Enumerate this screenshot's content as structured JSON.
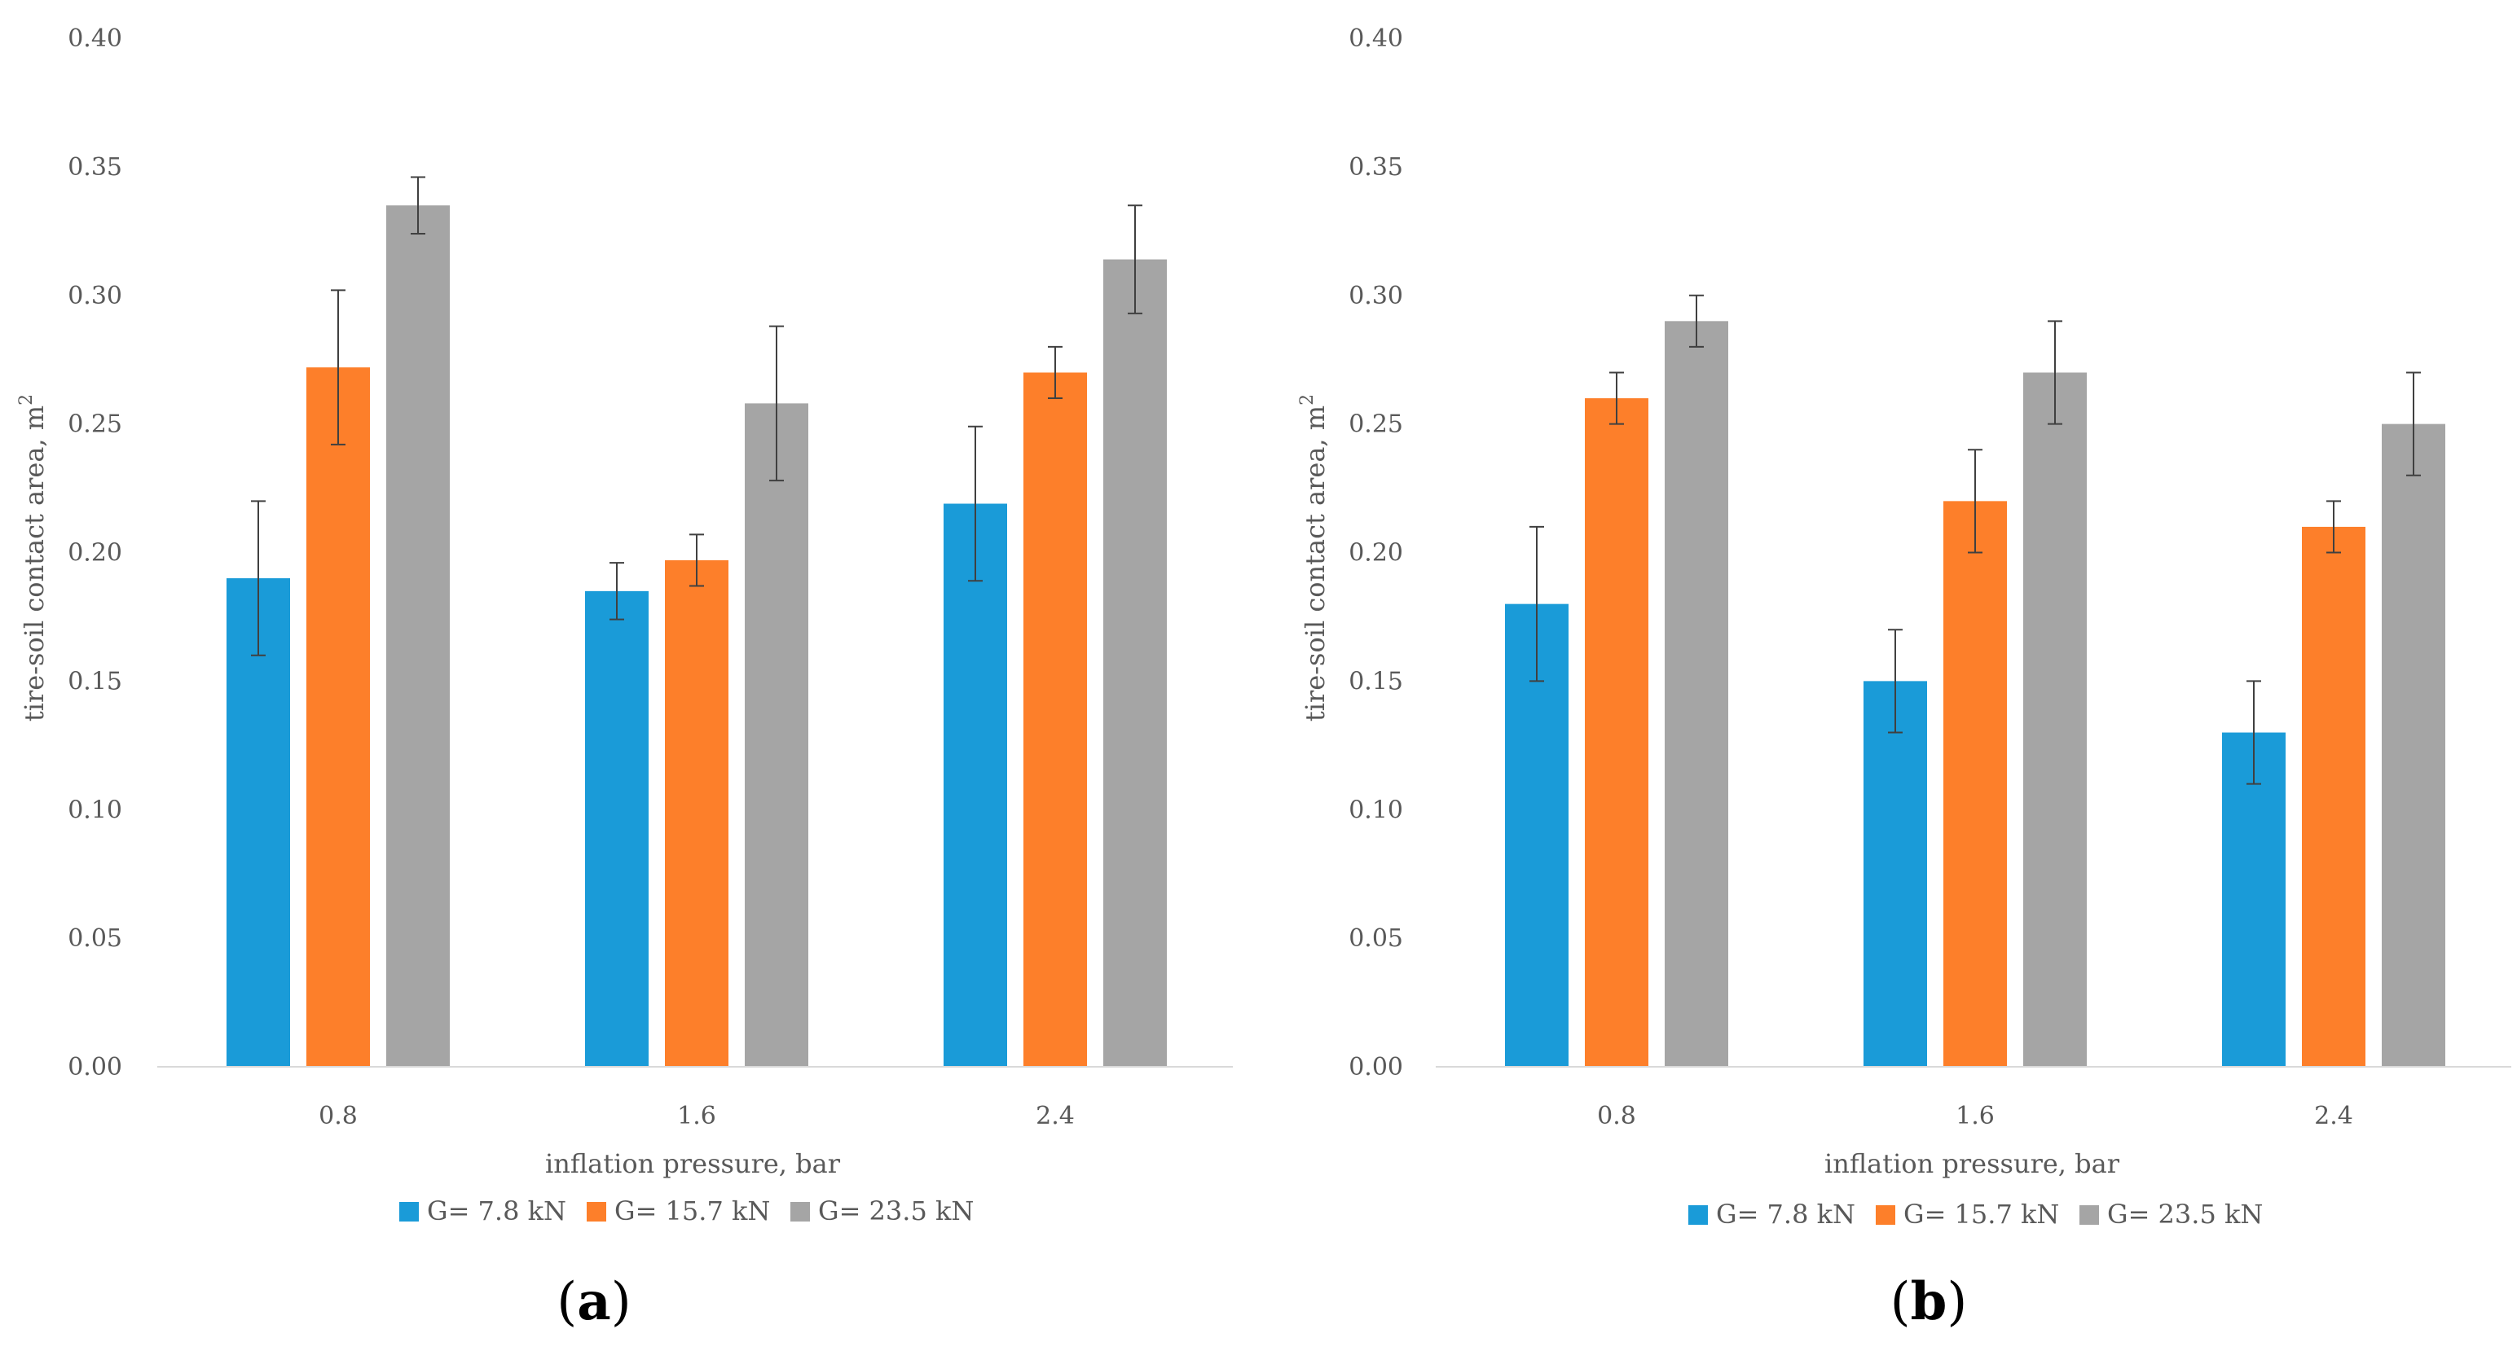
{
  "colors": {
    "series": [
      "#1a9bd8",
      "#fd7f2a",
      "#a5a5a5"
    ],
    "axis": "#d9d9d9",
    "text": "#595959",
    "error_bar": "#404040"
  },
  "chart_data": [
    {
      "type": "bar",
      "panel_label": "a",
      "categories": [
        "0.8",
        "1.6",
        "2.4"
      ],
      "series": [
        {
          "name": "G= 7.8 kN",
          "values": [
            0.19,
            0.185,
            0.219
          ],
          "error": [
            0.03,
            0.011,
            0.03
          ]
        },
        {
          "name": "G= 15.7 kN",
          "values": [
            0.272,
            0.197,
            0.27
          ],
          "error": [
            0.03,
            0.01,
            0.01
          ]
        },
        {
          "name": "G= 23.5 kN",
          "values": [
            0.335,
            0.258,
            0.314
          ],
          "error": [
            0.011,
            0.03,
            0.021
          ]
        }
      ],
      "xlabel": "inflation pressure, bar",
      "ylabel": "tire-soil contact area, m",
      "ylabel_sup": "2",
      "ylim": [
        0,
        0.4
      ],
      "yticks": [
        "0.00",
        "0.05",
        "0.10",
        "0.15",
        "0.20",
        "0.25",
        "0.30",
        "0.35",
        "0.40"
      ],
      "legend_position": "bottom",
      "grid": false
    },
    {
      "type": "bar",
      "panel_label": "b",
      "categories": [
        "0.8",
        "1.6",
        "2.4"
      ],
      "series": [
        {
          "name": "G= 7.8 kN",
          "values": [
            0.18,
            0.15,
            0.13
          ],
          "error": [
            0.03,
            0.02,
            0.02
          ]
        },
        {
          "name": "G= 15.7 kN",
          "values": [
            0.26,
            0.22,
            0.21
          ],
          "error": [
            0.01,
            0.02,
            0.01
          ]
        },
        {
          "name": "G= 23.5 kN",
          "values": [
            0.29,
            0.27,
            0.25
          ],
          "error": [
            0.01,
            0.02,
            0.02
          ]
        }
      ],
      "xlabel": "inflation pressure, bar",
      "ylabel": "tire-soil contact area, m",
      "ylabel_sup": "2",
      "ylim": [
        0,
        0.4
      ],
      "yticks": [
        "0.00",
        "0.05",
        "0.10",
        "0.15",
        "0.20",
        "0.25",
        "0.30",
        "0.35",
        "0.40"
      ],
      "legend_position": "bottom",
      "grid": false
    }
  ]
}
